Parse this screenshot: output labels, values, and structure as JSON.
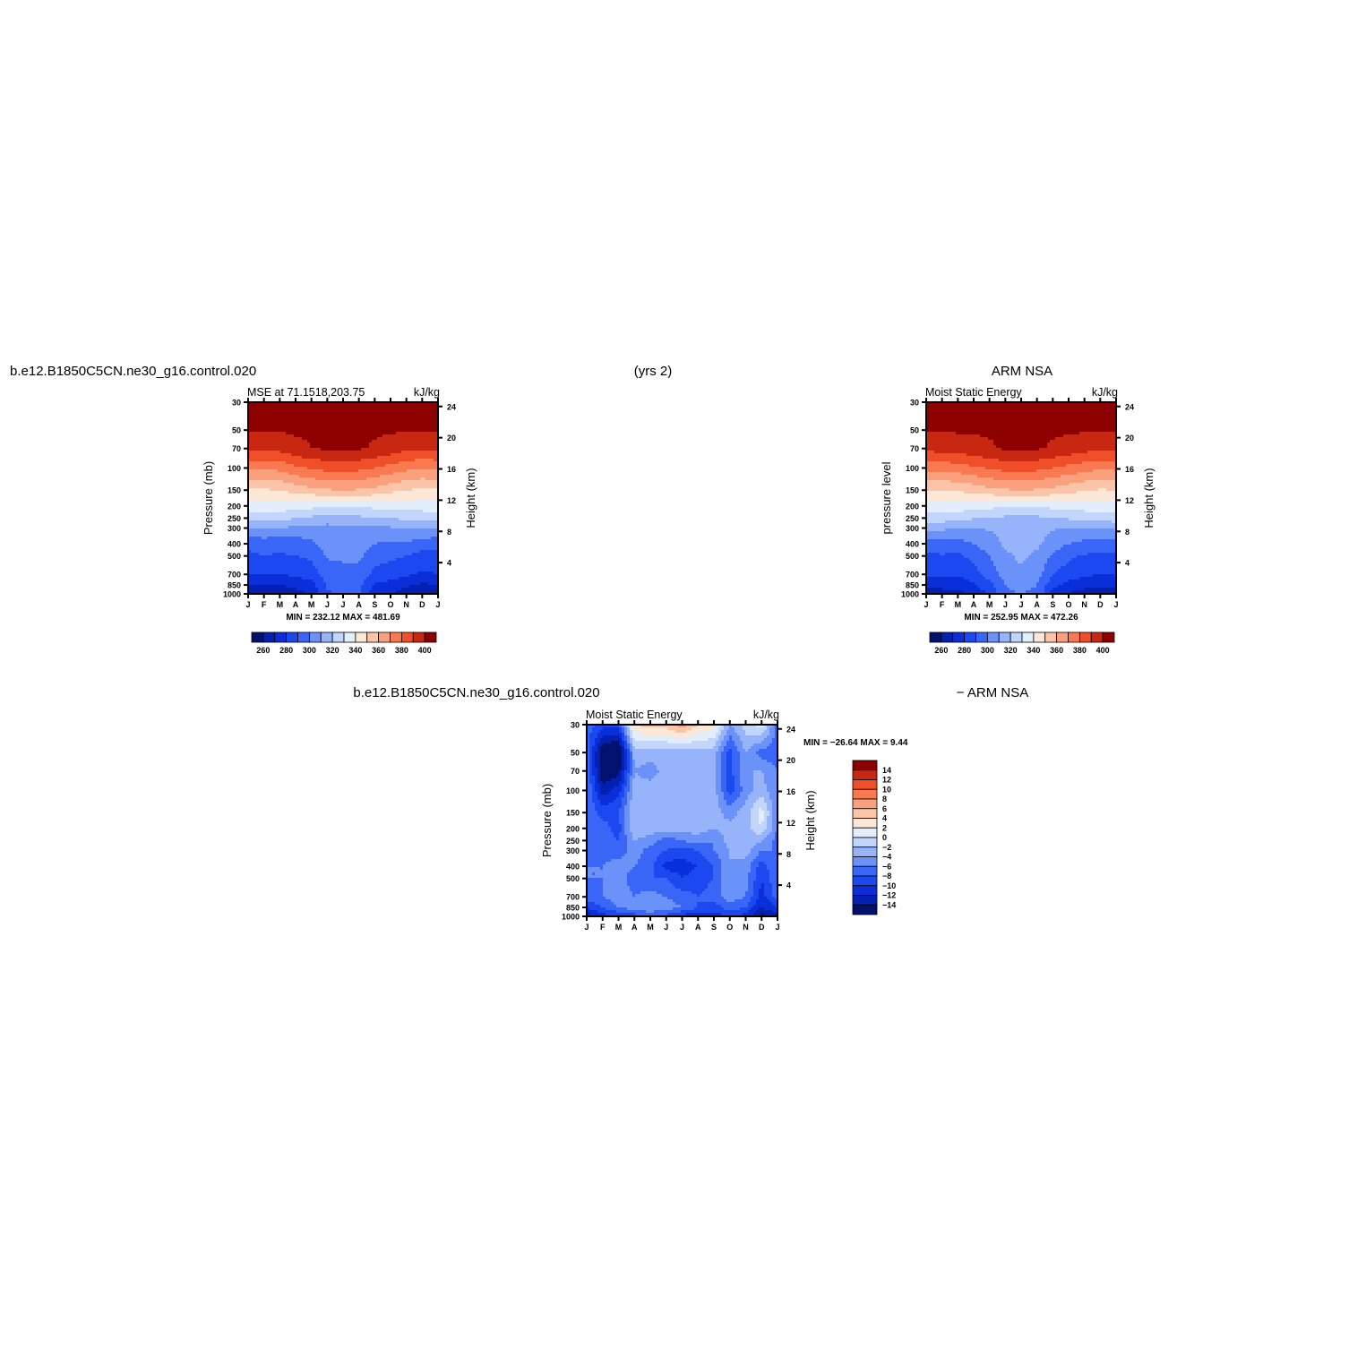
{
  "page": {
    "main_title_left": "b.e12.B1850C5CN.ne30_g16.control.020",
    "main_title_center": "(yrs 2)",
    "main_title_right": "ARM  NSA",
    "diff_title_left": "b.e12.B1850C5CN.ne30_g16.control.020",
    "diff_title_right": "− ARM  NSA"
  },
  "chart_data": [
    {
      "type": "heatmap",
      "id": "model",
      "title_left": "MSE at 71.1518,203.75",
      "title_right": "kJ/kg",
      "ylabel": "Pressure  (mb)",
      "ylabel_right": "Height  (km)",
      "x_categories": [
        "J",
        "F",
        "M",
        "A",
        "M",
        "J",
        "J",
        "A",
        "S",
        "O",
        "N",
        "D",
        "J"
      ],
      "y_levels": [
        30,
        50,
        70,
        100,
        150,
        200,
        250,
        300,
        400,
        500,
        700,
        850,
        1000
      ],
      "y_scale": "log",
      "y_reversed": true,
      "right_ticks": [
        24,
        20,
        16,
        12,
        8,
        4
      ],
      "stats_text": "MIN = 232.12  MAX = 481.69",
      "contour_levels": [
        260,
        270,
        280,
        290,
        300,
        310,
        320,
        330,
        340,
        350,
        360,
        370,
        380,
        390,
        400
      ],
      "colorbar_labels": [
        "260",
        "280",
        "300",
        "320",
        "340",
        "360",
        "380",
        "400"
      ],
      "colorbar_orientation": "horizontal",
      "values": [
        [
          401,
          401,
          401,
          401,
          401,
          401,
          401,
          401,
          401,
          401,
          401,
          401,
          401
        ],
        [
          401,
          401,
          401,
          401,
          401,
          401,
          401,
          401,
          401,
          401,
          401,
          401,
          401
        ],
        [
          392,
          392,
          393,
          398,
          400,
          401,
          401,
          401,
          399,
          396,
          392,
          391,
          392
        ],
        [
          372,
          372,
          373,
          378,
          381,
          384,
          385,
          383,
          380,
          376,
          373,
          371,
          372
        ],
        [
          349,
          349,
          350,
          354,
          357,
          359,
          360,
          359,
          357,
          353,
          350,
          348,
          349
        ],
        [
          335,
          336,
          336,
          334,
          333,
          332,
          332,
          332,
          333,
          334,
          335,
          335,
          335
        ],
        [
          324,
          325,
          324,
          320,
          318,
          317,
          318,
          318,
          319,
          320,
          322,
          323,
          324
        ],
        [
          310,
          311,
          310,
          308,
          307,
          306,
          307,
          307,
          308,
          309,
          310,
          311,
          310
        ],
        [
          292,
          294,
          292,
          294,
          298,
          305,
          306,
          306,
          300,
          298,
          298,
          296,
          292
        ],
        [
          288,
          290,
          289,
          290,
          292,
          301,
          302,
          302,
          294,
          292,
          290,
          286,
          288
        ],
        [
          280,
          281,
          280,
          282,
          285,
          295,
          296,
          296,
          287,
          285,
          282,
          278,
          280
        ],
        [
          270,
          271,
          270,
          273,
          276,
          292,
          293,
          293,
          279,
          276,
          272,
          268,
          270
        ],
        [
          262,
          264,
          262,
          266,
          270,
          289,
          290,
          290,
          274,
          270,
          265,
          258,
          262
        ]
      ]
    },
    {
      "type": "heatmap",
      "id": "obs",
      "title_left": "Moist Static Energy",
      "title_right": "kJ/kg",
      "ylabel": "pressure level",
      "ylabel_right": "Height  (km)",
      "x_categories": [
        "J",
        "F",
        "M",
        "A",
        "M",
        "J",
        "J",
        "A",
        "S",
        "O",
        "N",
        "D",
        "J"
      ],
      "y_levels": [
        30,
        50,
        70,
        100,
        150,
        200,
        250,
        300,
        400,
        500,
        700,
        850,
        1000
      ],
      "y_scale": "log",
      "y_reversed": true,
      "right_ticks": [
        24,
        20,
        16,
        12,
        8,
        4
      ],
      "stats_text": "MIN = 252.95  MAX = 472.26",
      "contour_levels": [
        260,
        270,
        280,
        290,
        300,
        310,
        320,
        330,
        340,
        350,
        360,
        370,
        380,
        390,
        400
      ],
      "colorbar_labels": [
        "260",
        "280",
        "300",
        "320",
        "340",
        "360",
        "380",
        "400"
      ],
      "colorbar_orientation": "horizontal",
      "values": [
        [
          401,
          401,
          401,
          401,
          401,
          401,
          401,
          401,
          401,
          401,
          401,
          401,
          401
        ],
        [
          401,
          401,
          401,
          401,
          401,
          401,
          401,
          401,
          401,
          401,
          401,
          401,
          401
        ],
        [
          393,
          394,
          395,
          397,
          399,
          401,
          401,
          401,
          399,
          397,
          394,
          392,
          393
        ],
        [
          373,
          374,
          375,
          378,
          381,
          384,
          385,
          383,
          380,
          377,
          374,
          372,
          373
        ],
        [
          350,
          350,
          351,
          354,
          357,
          359,
          360,
          359,
          357,
          354,
          351,
          349,
          350
        ],
        [
          336,
          336,
          336,
          334,
          333,
          332,
          332,
          332,
          333,
          334,
          335,
          336,
          336
        ],
        [
          325,
          325,
          324,
          321,
          319,
          318,
          318,
          318,
          319,
          321,
          323,
          324,
          325
        ],
        [
          312,
          312,
          311,
          310,
          311,
          314,
          315,
          314,
          311,
          310,
          311,
          311,
          312
        ],
        [
          295,
          296,
          295,
          300,
          305,
          312,
          314,
          312,
          305,
          300,
          297,
          296,
          295
        ],
        [
          288,
          289,
          288,
          293,
          300,
          308,
          312,
          308,
          298,
          292,
          289,
          287,
          288
        ],
        [
          281,
          282,
          281,
          286,
          294,
          305,
          308,
          305,
          290,
          285,
          282,
          280,
          281
        ],
        [
          272,
          274,
          274,
          279,
          287,
          300,
          303,
          300,
          283,
          277,
          274,
          272,
          272
        ],
        [
          263,
          265,
          266,
          272,
          282,
          298,
          300,
          298,
          276,
          268,
          265,
          262,
          263
        ]
      ]
    },
    {
      "type": "heatmap",
      "id": "diff",
      "title_left": "Moist Static Energy",
      "title_right": "kJ/kg",
      "ylabel": "Pressure  (mb)",
      "ylabel_right": "Height  (km)",
      "x_categories": [
        "J",
        "F",
        "M",
        "A",
        "M",
        "J",
        "J",
        "A",
        "S",
        "O",
        "N",
        "D",
        "J"
      ],
      "y_levels": [
        30,
        50,
        70,
        100,
        150,
        200,
        250,
        300,
        400,
        500,
        700,
        850,
        1000
      ],
      "y_scale": "log",
      "y_reversed": true,
      "right_ticks": [
        24,
        20,
        16,
        12,
        8,
        4
      ],
      "stats_text": "MIN = −26.64  MAX =    9.44",
      "contour_levels": [
        -14,
        -12,
        -10,
        -8,
        -6,
        -4,
        -2,
        0,
        2,
        4,
        6,
        8,
        10,
        12,
        14
      ],
      "colorbar_labels": [
        "14",
        "12",
        "10",
        "8",
        "6",
        "4",
        "2",
        "0",
        "−2",
        "−4",
        "−6",
        "−8",
        "−10",
        "−12",
        "−14"
      ],
      "colorbar_orientation": "vertical",
      "values": [
        [
          -7,
          -9,
          -9,
          4,
          5,
          5,
          7,
          4,
          3,
          -4,
          -1,
          1,
          -7
        ],
        [
          -7,
          -16,
          -18,
          -3,
          -3,
          -3,
          -3,
          -3,
          -3,
          -9,
          -4,
          -7,
          -7
        ],
        [
          -6,
          -16,
          -15,
          -4,
          -5,
          -3,
          -3,
          -3,
          -3,
          -9,
          -4,
          -4,
          -6
        ],
        [
          -6,
          -13,
          -11,
          -3,
          -3,
          -3,
          -3,
          -3,
          -3,
          -9,
          -5,
          -3,
          -6
        ],
        [
          -6,
          -9,
          -8,
          -2,
          -3,
          -4,
          -3,
          -3,
          -3,
          -5,
          -3,
          1,
          -6
        ],
        [
          -6,
          -7,
          -9,
          -2,
          -3,
          -3,
          -3,
          -3,
          -4,
          -3,
          -3,
          0,
          -6
        ],
        [
          -7,
          -7,
          -8,
          -4,
          -5,
          -7,
          -6,
          -5,
          -6,
          -3,
          -2,
          -4,
          -7
        ],
        [
          -6,
          -7,
          -7,
          -5,
          -7,
          -8,
          -9,
          -8,
          -6,
          -4,
          -3,
          -6,
          -6
        ],
        [
          -6,
          -6,
          -5,
          -6,
          -7,
          -11,
          -11,
          -10,
          -8,
          -4,
          -5,
          -9,
          -6
        ],
        [
          -6,
          -6,
          -5,
          -7,
          -8,
          -8,
          -10,
          -9,
          -8,
          -4,
          -5,
          -10,
          -6
        ],
        [
          -7,
          -6,
          -5,
          -6,
          -5,
          -6,
          -7,
          -8,
          -7,
          -5,
          -6,
          -11,
          -7
        ],
        [
          -10,
          -8,
          -6,
          -5,
          -4,
          -5,
          -6,
          -8,
          -9,
          -7,
          -8,
          -12,
          -10
        ],
        [
          -13,
          -11,
          -10,
          -9,
          -8,
          -9,
          -11,
          -12,
          -11,
          -10,
          -11,
          -15,
          -13
        ]
      ]
    }
  ],
  "colors": {
    "model_scale": [
      "#02106e",
      "#0320b0",
      "#0a2ed8",
      "#1c48f0",
      "#3a66f8",
      "#6a92f8",
      "#97b4fa",
      "#c2d6fc",
      "#e3eefd",
      "#fde8d8",
      "#fcc5a9",
      "#fba07c",
      "#f97a50",
      "#f04e28",
      "#c82812",
      "#8c0000"
    ],
    "diff_scale": [
      "#02106e",
      "#0320b0",
      "#0a2ed8",
      "#1c48f0",
      "#3a66f8",
      "#6a92f8",
      "#97b4fa",
      "#c2d6fc",
      "#e3eefd",
      "#fde8d8",
      "#fcc5a9",
      "#fba07c",
      "#f97a50",
      "#f04e28",
      "#c82812",
      "#8c0000"
    ]
  }
}
